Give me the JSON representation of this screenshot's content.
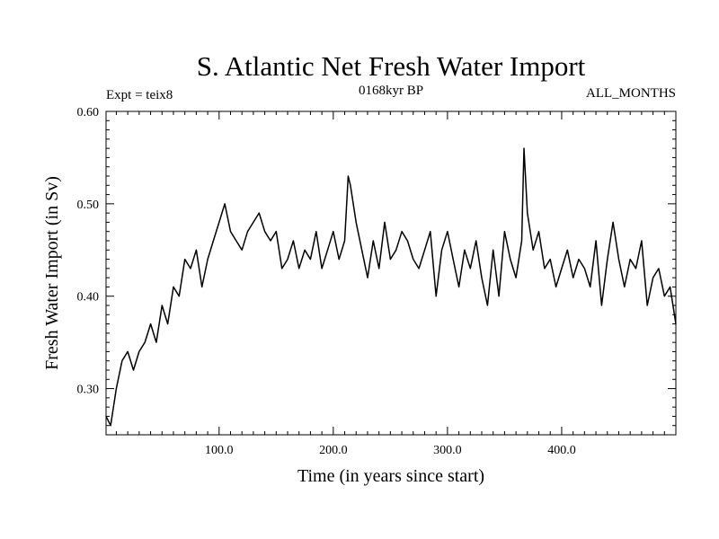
{
  "chart_data": {
    "type": "line",
    "title": "S. Atlantic Net Fresh Water Import",
    "subtitle_left": "Expt = teix8",
    "subtitle_center": "0168kyr BP",
    "subtitle_right": "ALL_MONTHS",
    "xlabel": "Time (in years since start)",
    "ylabel": "Fresh Water Import (in Sv)",
    "xlim": [
      1,
      500
    ],
    "ylim": [
      0.25,
      0.6
    ],
    "xticks": [
      100,
      200,
      300,
      400
    ],
    "xtick_labels": [
      "100.0",
      "200.0",
      "300.0",
      "400.0"
    ],
    "yticks": [
      0.3,
      0.4,
      0.5,
      0.6
    ],
    "ytick_labels": [
      "0.30",
      "0.40",
      "0.50",
      "0.60"
    ],
    "grid": false,
    "line_color": "#000000",
    "series": [
      {
        "x": [
          1,
          5,
          10,
          15,
          20,
          25,
          30,
          35,
          40,
          45,
          50,
          55,
          60,
          65,
          70,
          75,
          80,
          85,
          90,
          95,
          100,
          105,
          110,
          115,
          120,
          125,
          130,
          135,
          140,
          145,
          150,
          155,
          160,
          165,
          170,
          175,
          180,
          185,
          190,
          195,
          200,
          205,
          210,
          213,
          215,
          220,
          225,
          230,
          235,
          240,
          245,
          250,
          255,
          260,
          265,
          270,
          275,
          280,
          285,
          290,
          295,
          300,
          305,
          310,
          315,
          320,
          325,
          330,
          335,
          340,
          345,
          350,
          355,
          360,
          365,
          367,
          370,
          375,
          380,
          385,
          390,
          395,
          400,
          405,
          410,
          415,
          420,
          425,
          430,
          435,
          440,
          445,
          450,
          455,
          460,
          465,
          470,
          475,
          480,
          485,
          490,
          495,
          500
        ],
        "y": [
          0.27,
          0.26,
          0.3,
          0.33,
          0.34,
          0.32,
          0.34,
          0.35,
          0.37,
          0.35,
          0.39,
          0.37,
          0.41,
          0.4,
          0.44,
          0.43,
          0.45,
          0.41,
          0.44,
          0.46,
          0.48,
          0.5,
          0.47,
          0.46,
          0.45,
          0.47,
          0.48,
          0.49,
          0.47,
          0.46,
          0.47,
          0.43,
          0.44,
          0.46,
          0.43,
          0.45,
          0.44,
          0.47,
          0.43,
          0.45,
          0.47,
          0.44,
          0.46,
          0.53,
          0.52,
          0.48,
          0.45,
          0.42,
          0.46,
          0.43,
          0.48,
          0.44,
          0.45,
          0.47,
          0.46,
          0.44,
          0.43,
          0.45,
          0.47,
          0.4,
          0.45,
          0.47,
          0.44,
          0.41,
          0.45,
          0.43,
          0.46,
          0.42,
          0.39,
          0.45,
          0.4,
          0.47,
          0.44,
          0.42,
          0.46,
          0.56,
          0.49,
          0.45,
          0.47,
          0.43,
          0.44,
          0.41,
          0.43,
          0.45,
          0.42,
          0.44,
          0.43,
          0.41,
          0.46,
          0.39,
          0.44,
          0.48,
          0.44,
          0.41,
          0.44,
          0.43,
          0.46,
          0.39,
          0.42,
          0.43,
          0.4,
          0.41,
          0.37
        ]
      }
    ]
  }
}
